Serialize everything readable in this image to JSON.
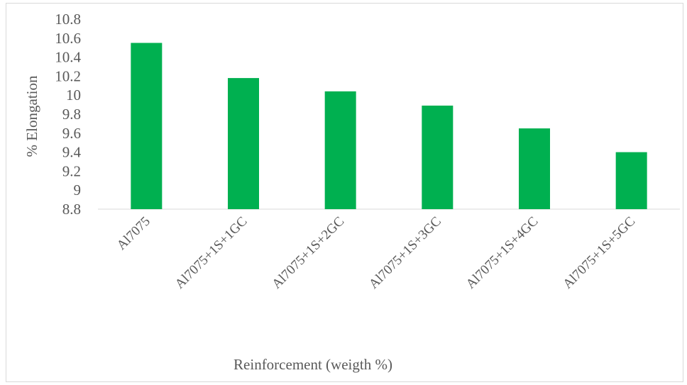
{
  "chart_data": {
    "type": "bar",
    "title": "",
    "xlabel": "Reinforcement (weigth %)",
    "ylabel": "% Elongation",
    "categories": [
      "Al7075",
      "Al7075+1S+1GC",
      "Al7075+1S+2GC",
      "Al7075+1S+3GC",
      "Al7075+1S+4GC",
      "Al7075+1S+5GC"
    ],
    "values": [
      10.55,
      10.18,
      10.04,
      9.89,
      9.65,
      9.4
    ],
    "ylim": [
      8.8,
      10.8
    ],
    "yticks": [
      "8.8",
      "9",
      "9.2",
      "9.4",
      "9.6",
      "9.8",
      "10",
      "10.2",
      "10.4",
      "10.6",
      "10.8"
    ],
    "grid": false,
    "legend": "none",
    "bar_color": "#00b050",
    "axis_color": "#d9d9d9"
  }
}
